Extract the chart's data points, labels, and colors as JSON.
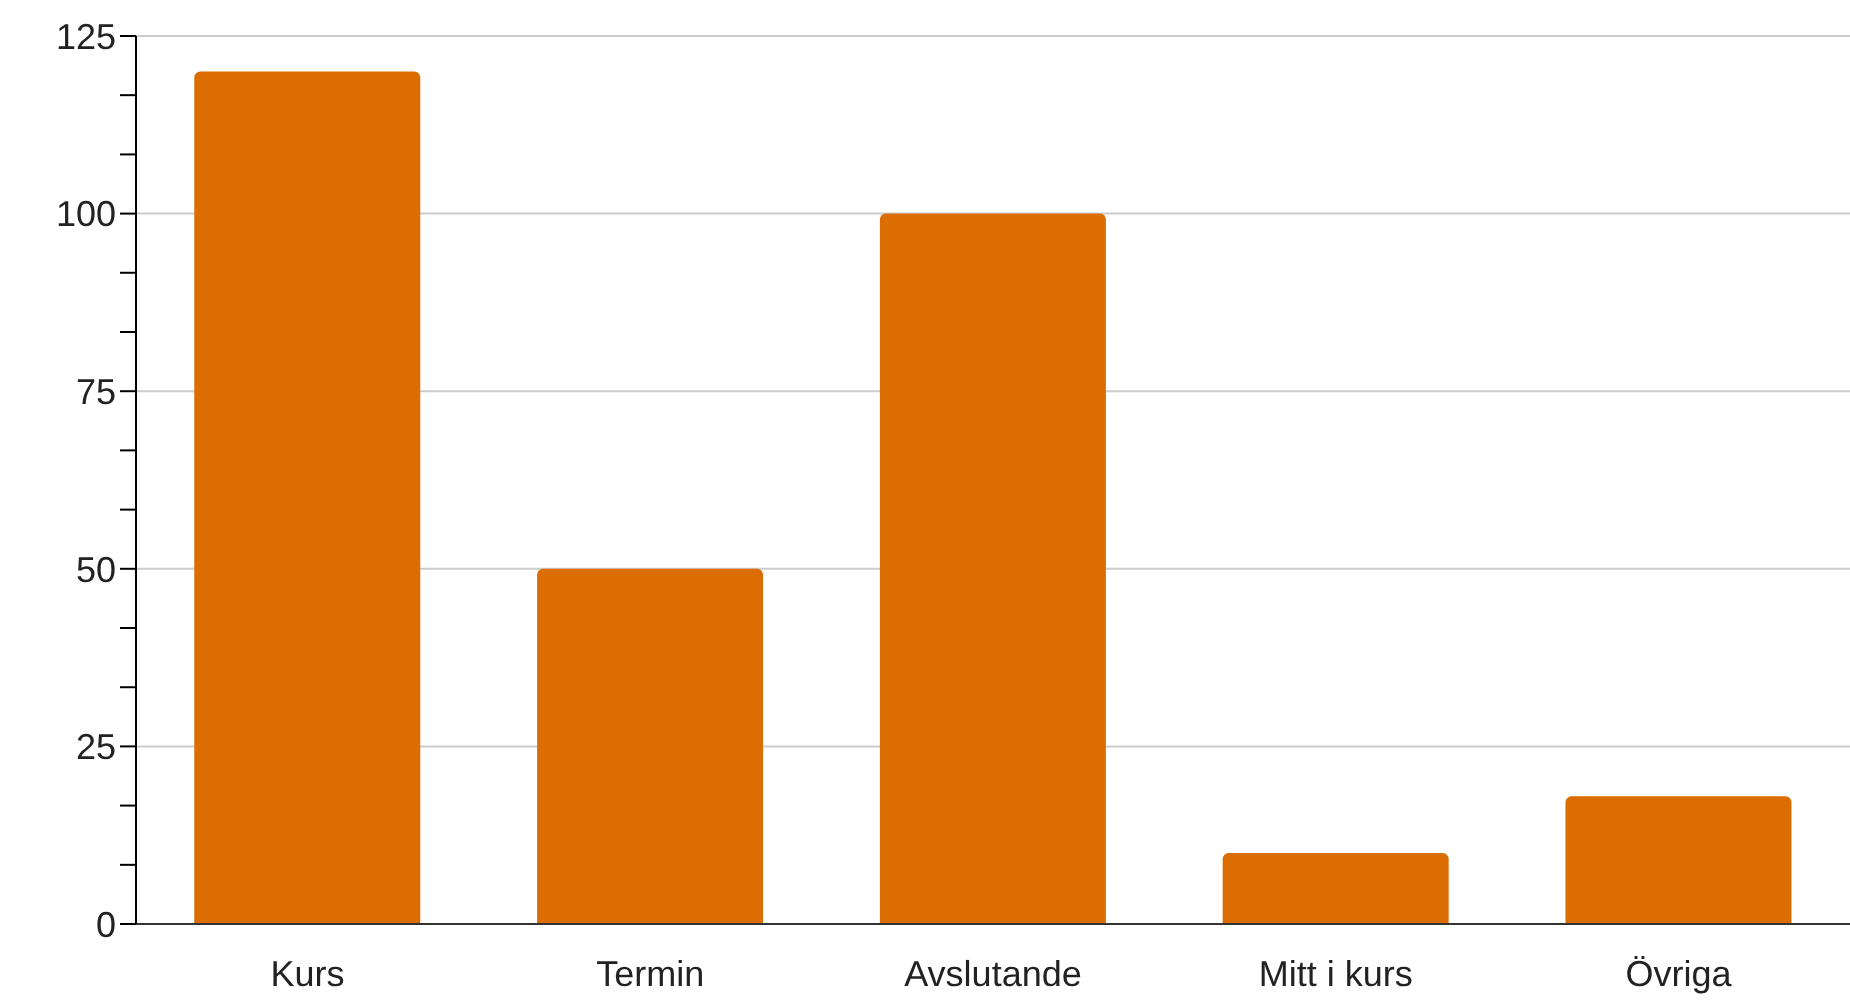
{
  "chart_data": {
    "type": "bar",
    "categories": [
      "Kurs",
      "Termin",
      "Avslutande",
      "Mitt i kurs",
      "Övriga"
    ],
    "values": [
      120,
      50,
      100,
      10,
      18
    ],
    "color": "#dc6d02",
    "ylim": [
      0,
      125
    ],
    "yticks": [
      0,
      {
        "value": 8.33,
        "label": null
      },
      {
        "value": 16.67,
        "label": null
      },
      25,
      {
        "value": 33.33,
        "label": null
      },
      {
        "value": 41.67,
        "label": null
      },
      50,
      {
        "value": 58.33,
        "label": null
      },
      {
        "value": 66.67,
        "label": null
      },
      75,
      {
        "value": 83.33,
        "label": null
      },
      {
        "value": 91.67,
        "label": null
      },
      100,
      {
        "value": 108.33,
        "label": null
      },
      {
        "value": 116.67,
        "label": null
      },
      125
    ],
    "grid": "y"
  }
}
